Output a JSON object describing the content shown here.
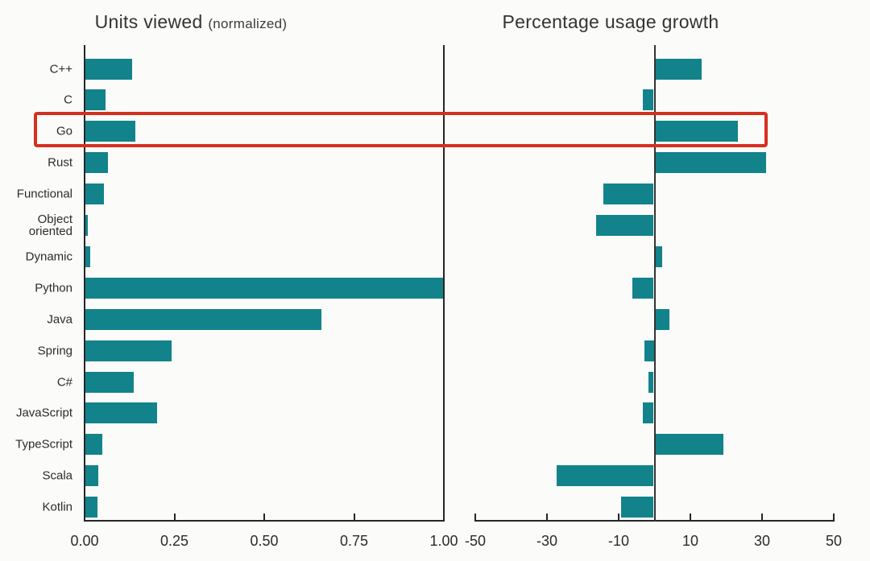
{
  "page": {
    "background": "#fbfbf9"
  },
  "left_chart": {
    "title": "Units viewed",
    "title_note": "(normalized)"
  },
  "right_chart": {
    "title": "Percentage usage growth"
  },
  "chart_data": [
    {
      "type": "bar",
      "orientation": "horizontal",
      "title": "Units viewed (normalized)",
      "categories": [
        "C++",
        "C",
        "Go",
        "Rust",
        "Functional",
        "Object oriented",
        "Dynamic",
        "Python",
        "Java",
        "Spring",
        "C#",
        "JavaScript",
        "TypeScript",
        "Scala",
        "Kotlin"
      ],
      "values": [
        0.13,
        0.056,
        0.14,
        0.063,
        0.052,
        0.007,
        0.013,
        1.0,
        0.66,
        0.24,
        0.135,
        0.2,
        0.047,
        0.036,
        0.034
      ],
      "xlim": [
        0,
        1
      ],
      "ticks": [
        0,
        0.25,
        0.5,
        0.75,
        1
      ],
      "tick_labels": [
        "0.00",
        "0.25",
        "0.50",
        "0.75",
        "1.00"
      ],
      "grid": false,
      "legend": false
    },
    {
      "type": "bar",
      "orientation": "horizontal",
      "title": "Percentage usage growth",
      "categories": [
        "C++",
        "C",
        "Go",
        "Rust",
        "Functional",
        "Object oriented",
        "Dynamic",
        "Python",
        "Java",
        "Spring",
        "C#",
        "JavaScript",
        "TypeScript",
        "Scala",
        "Kotlin"
      ],
      "values": [
        13,
        -3,
        23,
        31,
        -14,
        -16,
        2,
        -6,
        4,
        -2.5,
        -1.5,
        -3,
        19,
        -27,
        -9
      ],
      "xlim": [
        -50,
        50
      ],
      "ticks": [
        -50,
        -30,
        -10,
        10,
        30,
        50
      ],
      "tick_labels": [
        "-50",
        "-30",
        "-10",
        "10",
        "30",
        "50"
      ],
      "grid": false,
      "legend": false
    }
  ],
  "annotation": {
    "highlighted_category": "Go",
    "color": "#d5301f"
  },
  "colors": {
    "bar": "#12838a",
    "axis": "#262626",
    "text": "#2e2e2e"
  }
}
